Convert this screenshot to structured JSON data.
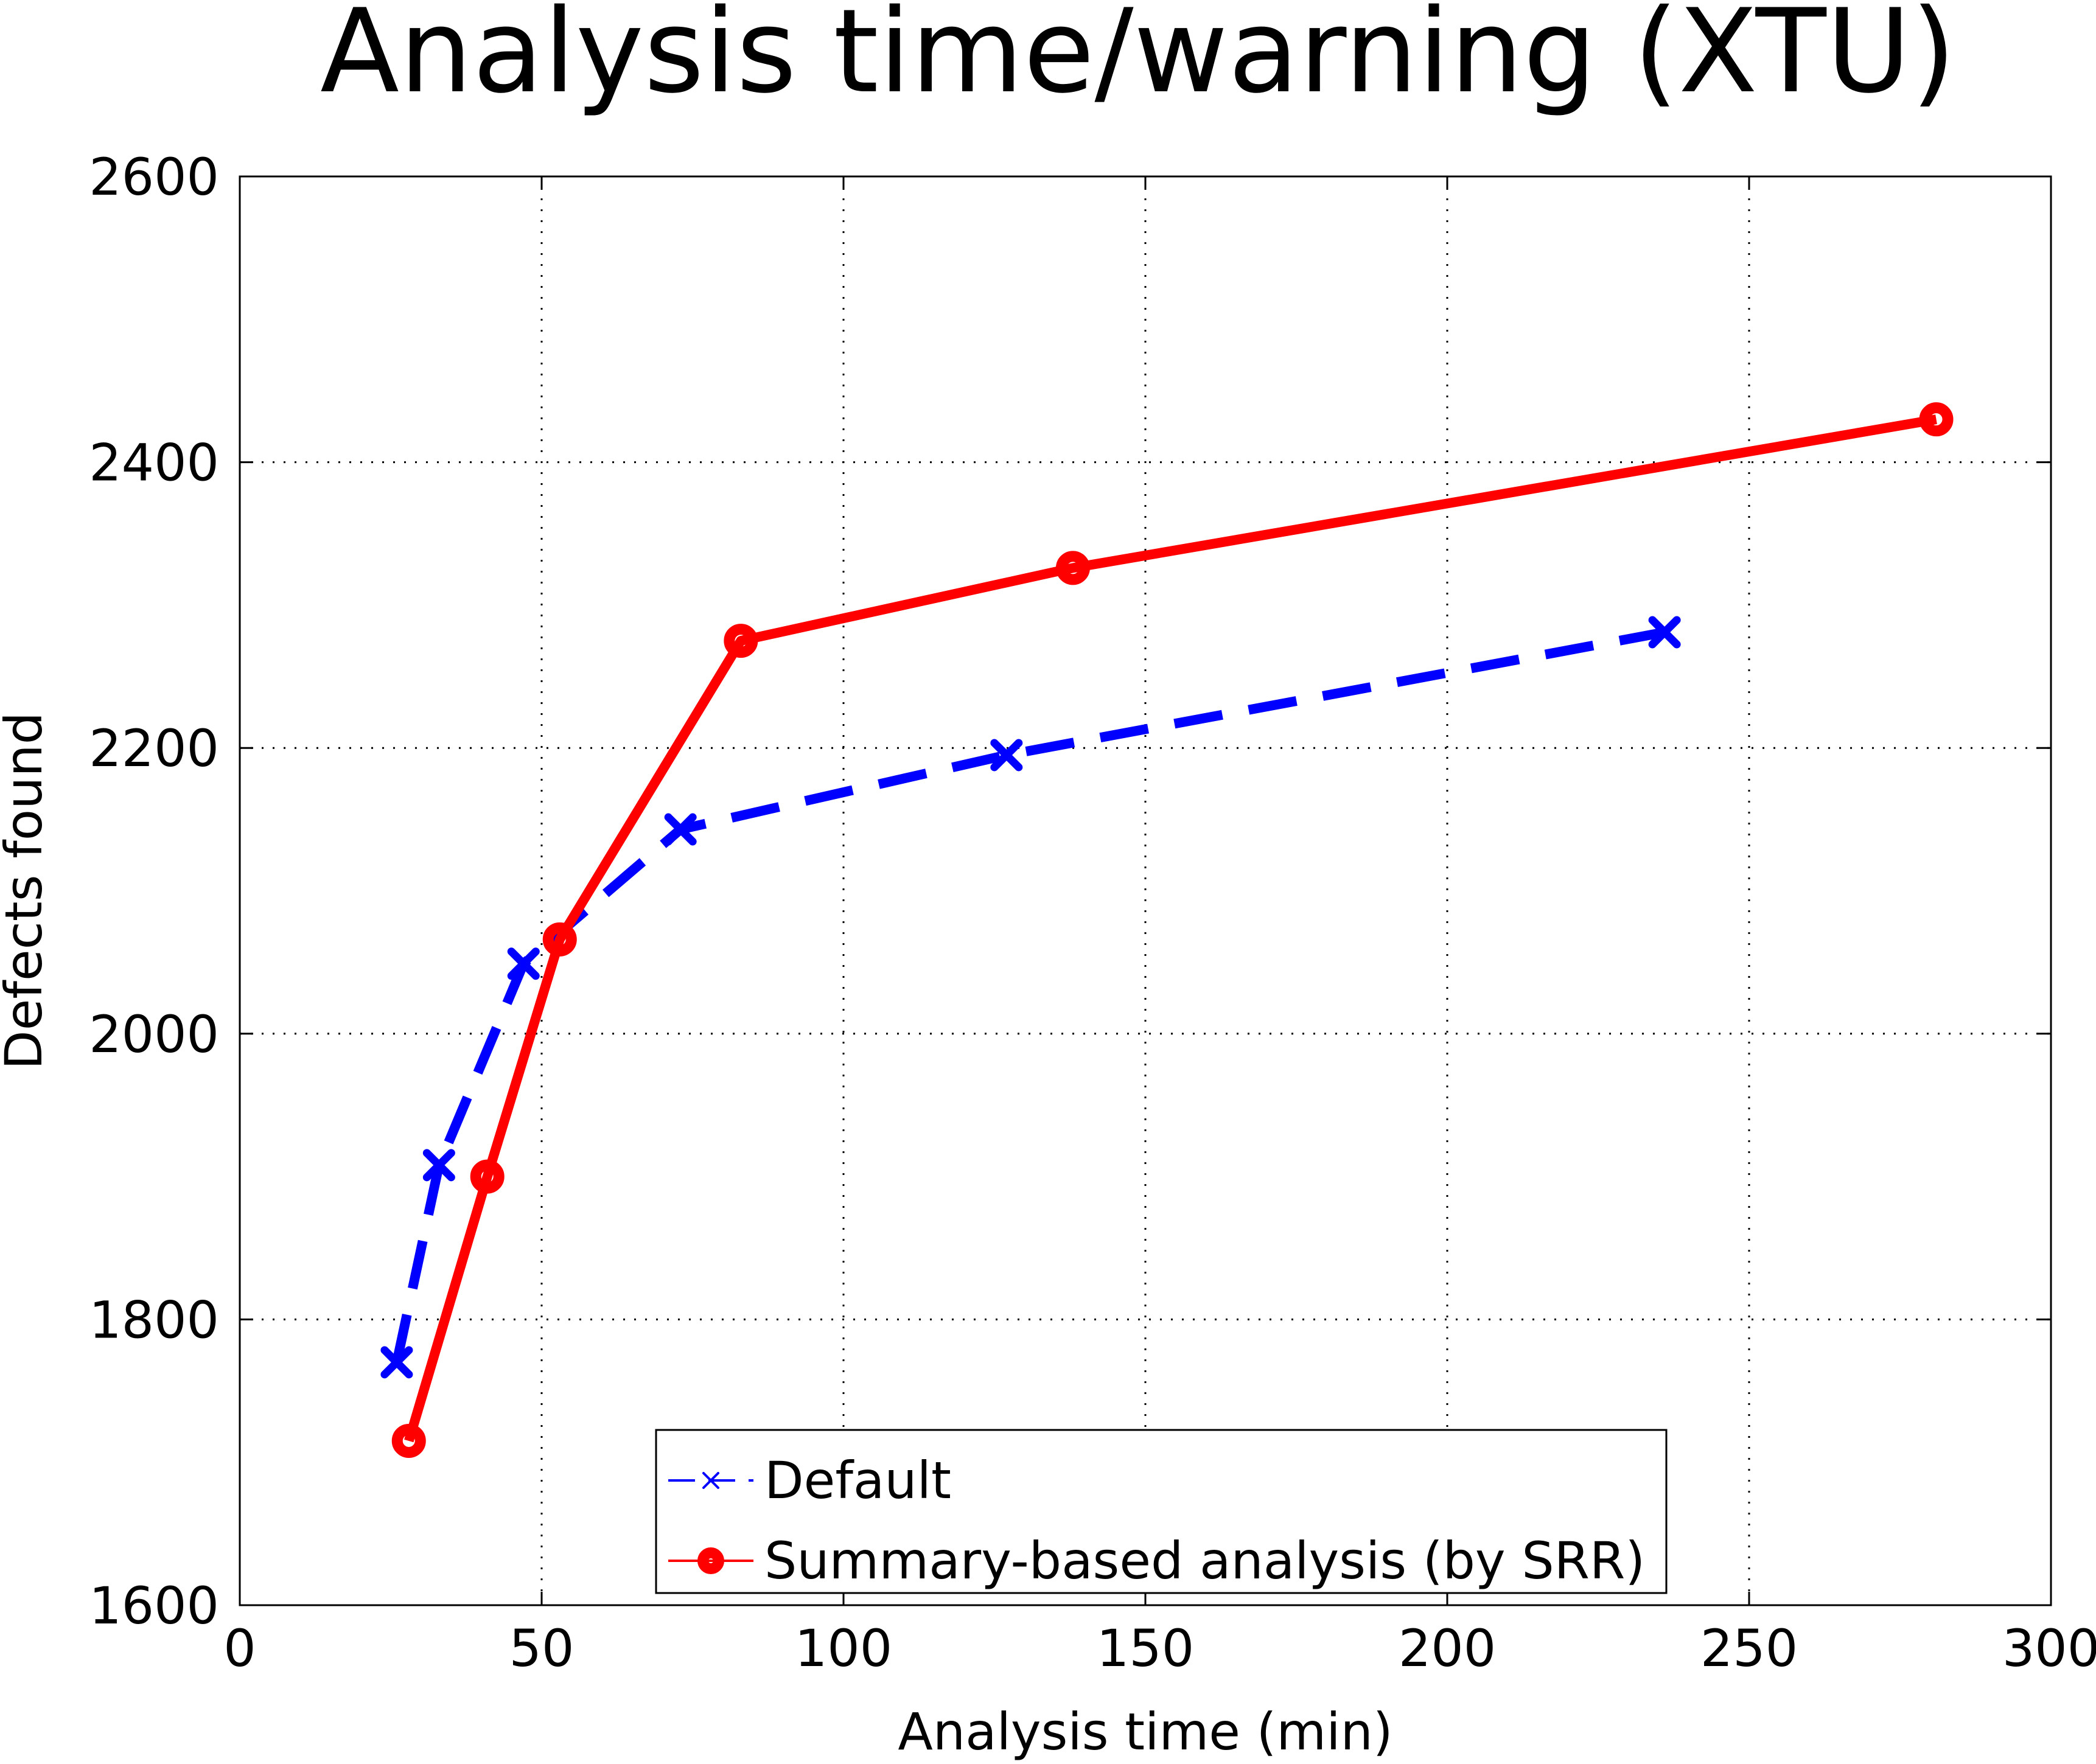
{
  "chart_data": {
    "type": "line",
    "title": "Analysis time/warning (XTU)",
    "xlabel": "Analysis time (min)",
    "ylabel": "Defects found",
    "xlim": [
      0,
      300
    ],
    "ylim": [
      1600,
      2600
    ],
    "xticks": [
      0,
      50,
      100,
      150,
      200,
      250,
      300
    ],
    "yticks": [
      1600,
      1800,
      2000,
      2200,
      2400,
      2600
    ],
    "grid": true,
    "legend_position": "bottom-center",
    "series": [
      {
        "name": "Default",
        "color": "#0000ff",
        "line_style": "dashed",
        "marker": "x",
        "points": [
          {
            "x": 26,
            "y": 1770
          },
          {
            "x": 33,
            "y": 1908
          },
          {
            "x": 47,
            "y": 2049
          },
          {
            "x": 73,
            "y": 2143
          },
          {
            "x": 127,
            "y": 2195
          },
          {
            "x": 236,
            "y": 2281
          }
        ]
      },
      {
        "name": "Summary-based analysis (by SRR)",
        "color": "#ff0000",
        "line_style": "solid",
        "marker": "o",
        "points": [
          {
            "x": 28,
            "y": 1715
          },
          {
            "x": 41,
            "y": 1900
          },
          {
            "x": 53,
            "y": 2066
          },
          {
            "x": 83,
            "y": 2275
          },
          {
            "x": 138,
            "y": 2326
          },
          {
            "x": 281,
            "y": 2430
          }
        ]
      }
    ]
  }
}
